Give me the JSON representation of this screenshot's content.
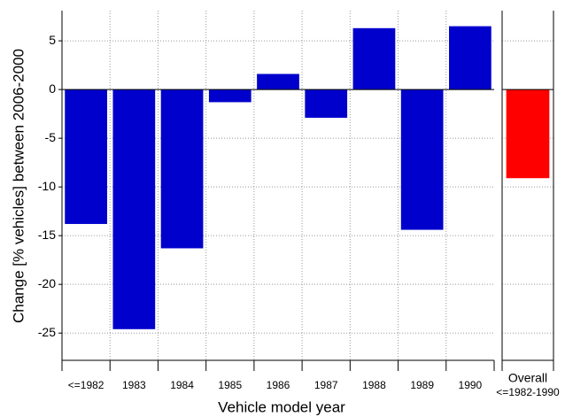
{
  "chart_data": {
    "type": "bar",
    "x_label": "Vehicle model year",
    "y_label": "Change [% vehicles] between 2006-2000",
    "categories": [
      "<=1982",
      "1983",
      "1984",
      "1985",
      "1986",
      "1987",
      "1988",
      "1989",
      "1990",
      [
        "Overall",
        "<=1982-1990"
      ]
    ],
    "values": [
      -13.8,
      -24.6,
      -16.3,
      -1.3,
      1.6,
      -2.9,
      6.3,
      -14.4,
      6.5,
      -9.1
    ],
    "colors": [
      "#0000cc",
      "#0000cc",
      "#0000cc",
      "#0000cc",
      "#0000cc",
      "#0000cc",
      "#0000cc",
      "#0000cc",
      "#0000cc",
      "#ff0000"
    ],
    "ylim": [
      -27.8,
      8.1
    ],
    "yticks": [
      5,
      0,
      -5,
      -10,
      -15,
      -20,
      -25
    ],
    "grid": true
  }
}
